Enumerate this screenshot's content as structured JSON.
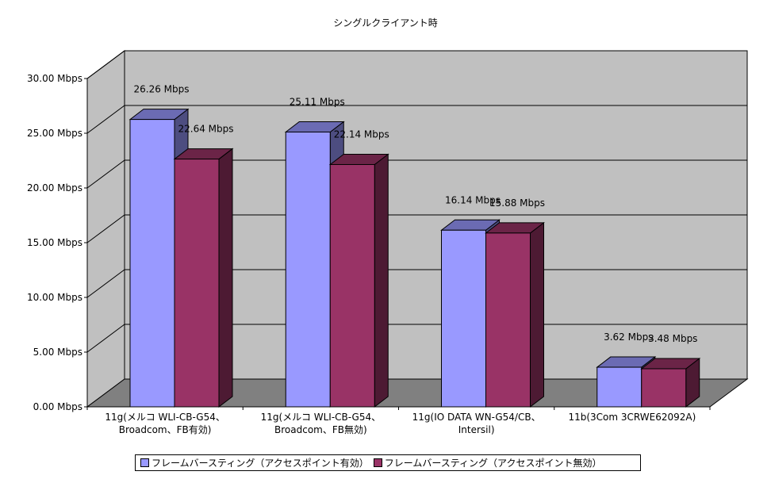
{
  "chart_data": {
    "type": "bar",
    "title": "シングルクライアント時",
    "categories": [
      [
        "11g(メルコ WLI-CB-G54、",
        "Broadcom、FB有効)"
      ],
      [
        "11g(メルコ WLI-CB-G54、",
        "Broadcom、FB無効)"
      ],
      [
        "11g(IO DATA WN-G54/CB、",
        "Intersil)"
      ],
      [
        "11b(3Com 3CRWE62092A)"
      ]
    ],
    "series": [
      {
        "name": "フレームバースティング（アクセスポイント有効）",
        "values": [
          26.26,
          25.11,
          16.14,
          3.62
        ],
        "labels": [
          "26.26 Mbps",
          "25.11 Mbps",
          "16.14 Mbps",
          "3.62 Mbps"
        ],
        "color": "#9999ff"
      },
      {
        "name": "フレームバースティング（アクセスポイント無効）",
        "values": [
          22.64,
          22.14,
          15.88,
          3.48
        ],
        "labels": [
          "22.64 Mbps",
          "22.14 Mbps",
          "15.88 Mbps",
          "3.48 Mbps"
        ],
        "color": "#993366"
      }
    ],
    "yticks": [
      "0.00 Mbps",
      "5.00 Mbps",
      "10.00 Mbps",
      "15.00 Mbps",
      "20.00 Mbps",
      "25.00 Mbps",
      "30.00 Mbps"
    ],
    "ylim": [
      0,
      30
    ],
    "ystep": 5,
    "grid": true,
    "three_d": true,
    "legend_position": "bottom",
    "wall_color": "#c0c0c0",
    "floor_color": "#808080"
  }
}
